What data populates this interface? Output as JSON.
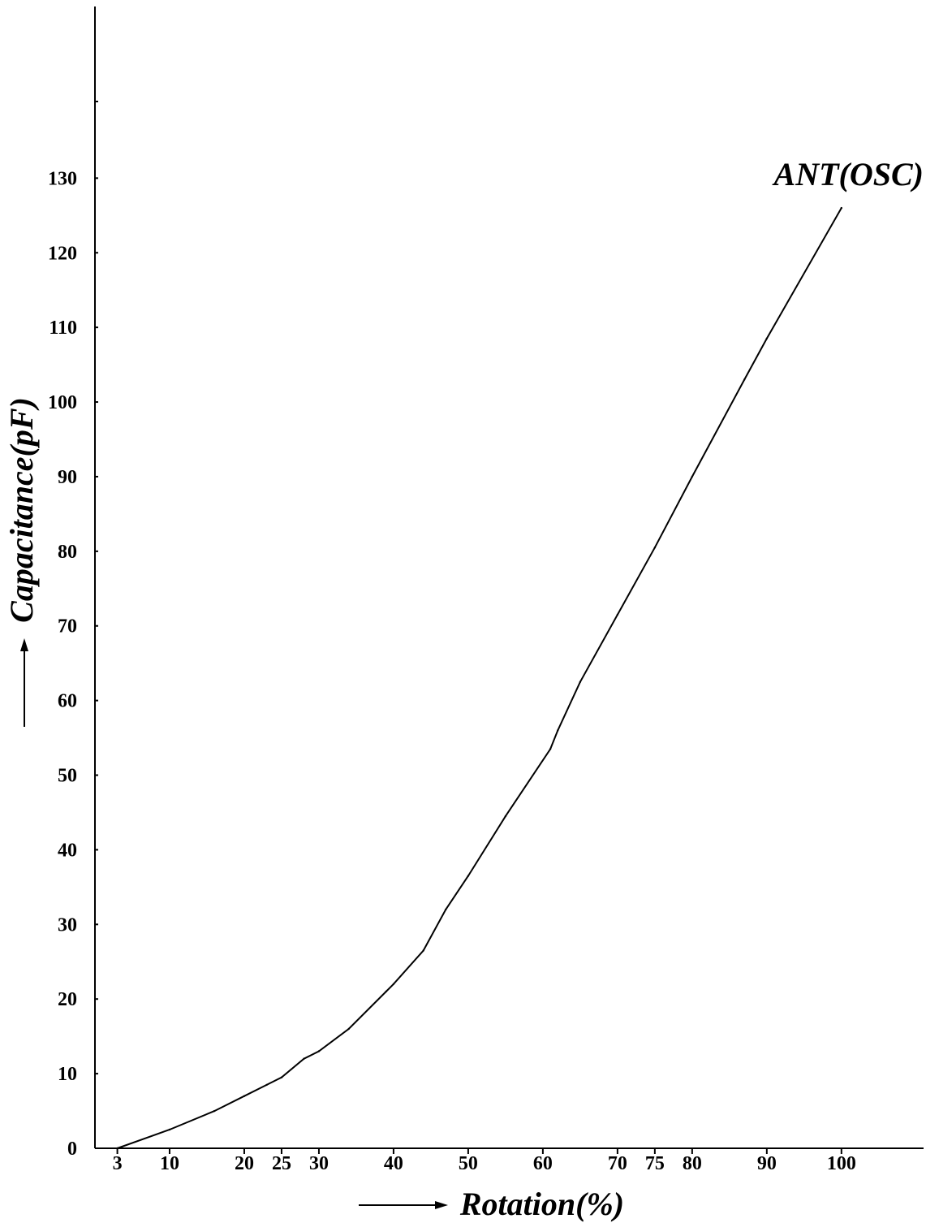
{
  "chart_data": {
    "type": "line",
    "xlabel": "Rotation(%)",
    "ylabel": "Capacitance(pF)",
    "x_ticks": [
      3,
      10,
      20,
      25,
      30,
      40,
      50,
      60,
      70,
      75,
      80,
      90,
      100
    ],
    "y_ticks": [
      0,
      10,
      20,
      30,
      40,
      50,
      60,
      70,
      80,
      90,
      100,
      110,
      120,
      130
    ],
    "xlim": [
      0,
      111
    ],
    "ylim": [
      0,
      153
    ],
    "grid": false,
    "series": [
      {
        "name": "ANT(OSC)",
        "x": [
          3,
          10,
          16,
          20,
          23,
          25,
          28,
          30,
          34,
          39,
          40,
          44,
          47,
          50,
          55,
          61,
          62,
          65,
          70,
          75,
          80,
          87,
          90,
          100
        ],
        "y": [
          0,
          2.5,
          5,
          7,
          8.5,
          9.5,
          12,
          13,
          16,
          21,
          22,
          26.5,
          32,
          36.5,
          44.5,
          53.5,
          56,
          62.5,
          71.5,
          80.5,
          90,
          103,
          108.5,
          126
        ]
      }
    ],
    "colors": {
      "line": "#000000",
      "axis": "#000000",
      "background": "#ffffff"
    }
  }
}
